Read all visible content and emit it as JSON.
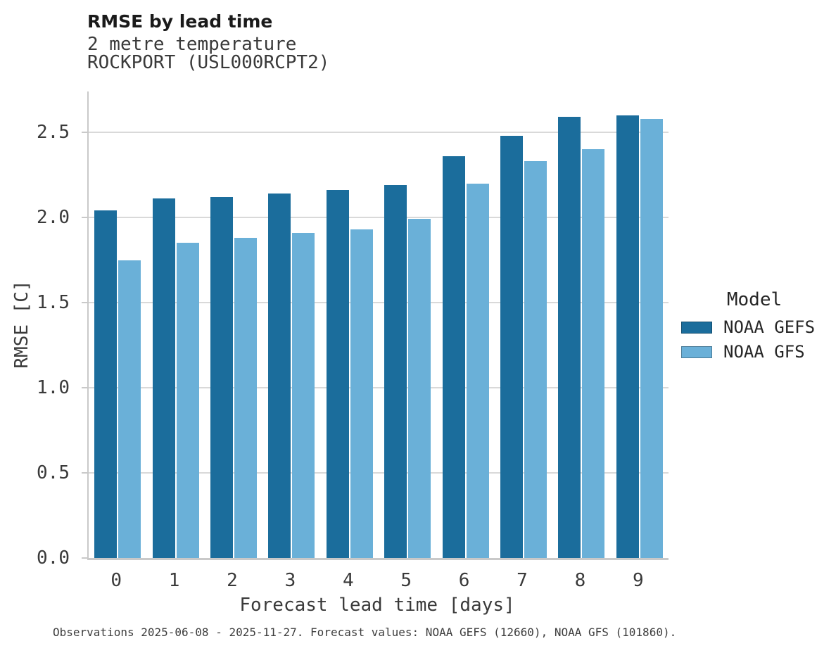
{
  "header": {
    "title": "RMSE by lead time",
    "subtitle_lines": [
      "2 metre temperature",
      "ROCKPORT (USL000RCPT2)"
    ]
  },
  "chart_data": {
    "type": "bar",
    "title": "RMSE by lead time",
    "subtitle": [
      "2 metre temperature",
      "ROCKPORT (USL000RCPT2)"
    ],
    "categories": [
      "0",
      "1",
      "2",
      "3",
      "4",
      "5",
      "6",
      "7",
      "8",
      "9"
    ],
    "series": [
      {
        "name": "NOAA GEFS",
        "color": "#1b6d9c",
        "values": [
          2.04,
          2.11,
          2.12,
          2.14,
          2.16,
          2.19,
          2.36,
          2.48,
          2.59,
          2.6
        ]
      },
      {
        "name": "NOAA GFS",
        "color": "#6ab0d8",
        "values": [
          1.75,
          1.85,
          1.88,
          1.91,
          1.93,
          1.99,
          2.2,
          2.33,
          2.4,
          2.58
        ]
      }
    ],
    "xlabel": "Forecast lead time [days]",
    "ylabel": "RMSE [C]",
    "ylim": [
      0,
      2.74
    ],
    "yticks": [
      0.0,
      0.5,
      1.0,
      1.5,
      2.0,
      2.5
    ],
    "ytick_labels": [
      "0.0",
      "0.5",
      "1.0",
      "1.5",
      "2.0",
      "2.5"
    ],
    "grid": "horizontal",
    "legend_title": "Model",
    "legend_position": "right"
  },
  "legend": {
    "title": "Model",
    "items": [
      {
        "label": "NOAA GEFS",
        "color": "#1b6d9c"
      },
      {
        "label": "NOAA GFS",
        "color": "#6ab0d8"
      }
    ]
  },
  "footnote": "Observations 2025-06-08 - 2025-11-27. Forecast values: NOAA GEFS (12660), NOAA GFS (101860).",
  "colors": {
    "series_dark": "#1b6d9c",
    "series_light": "#6ab0d8",
    "gridline": "#d9d9d9",
    "spine": "#c9c9c9",
    "tick_text": "#3a3a3a",
    "title_text": "#1a1a1a"
  }
}
